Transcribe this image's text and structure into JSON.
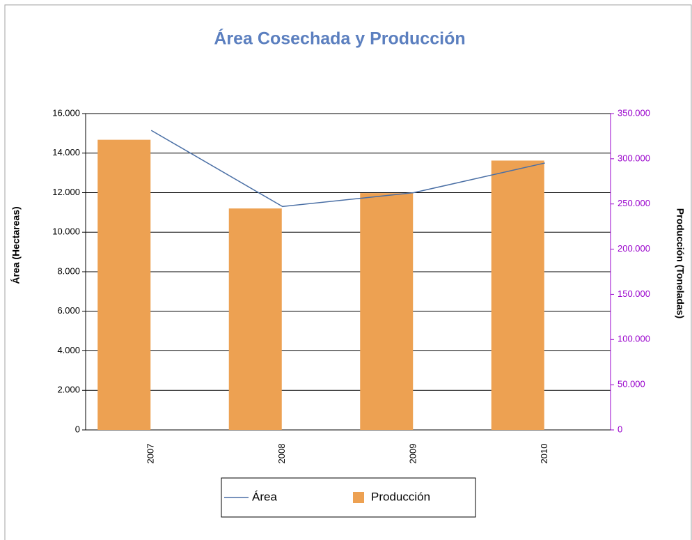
{
  "chart_data": {
    "type": "bar-line",
    "title": "Área Cosechada y Producción",
    "categories": [
      "2007",
      "2008",
      "2009",
      "2010"
    ],
    "y_label": "Área (Hectareas)",
    "y2_label": "Producción (Toneladas)",
    "series": [
      {
        "name": "Área",
        "type": "line",
        "color": "#4a6fa5",
        "values": [
          15150,
          11300,
          12000,
          13500
        ]
      },
      {
        "name": "Producción",
        "type": "bar",
        "axis": "y2",
        "color": "#eda152",
        "values": [
          321000,
          245000,
          262000,
          298000
        ]
      }
    ],
    "ylim": [
      0,
      16000
    ],
    "yticks": [
      0,
      {
        "value": 2000,
        "label": "2.000"
      },
      {
        "value": 4000,
        "label": "4.000"
      },
      {
        "value": 6000,
        "label": "6.000"
      },
      {
        "value": 8000,
        "label": "8.000"
      },
      {
        "value": 10000,
        "label": "10.000"
      },
      {
        "value": 12000,
        "label": "12.000"
      },
      {
        "value": 14000,
        "label": "14.000"
      },
      {
        "value": 16000,
        "label": "16.000"
      }
    ],
    "y2lim": [
      0,
      350000
    ],
    "y2ticks": [
      0,
      {
        "value": 50000,
        "label": "50.000"
      },
      {
        "value": 100000,
        "label": "100.000"
      },
      {
        "value": 150000,
        "label": "150.000"
      },
      {
        "value": 200000,
        "label": "200.000"
      },
      {
        "value": 250000,
        "label": "250.000"
      },
      {
        "value": 300000,
        "label": "300.000"
      },
      {
        "value": 350000,
        "label": "350.000"
      }
    ],
    "y2_color": "#9900cc",
    "grid": true
  }
}
